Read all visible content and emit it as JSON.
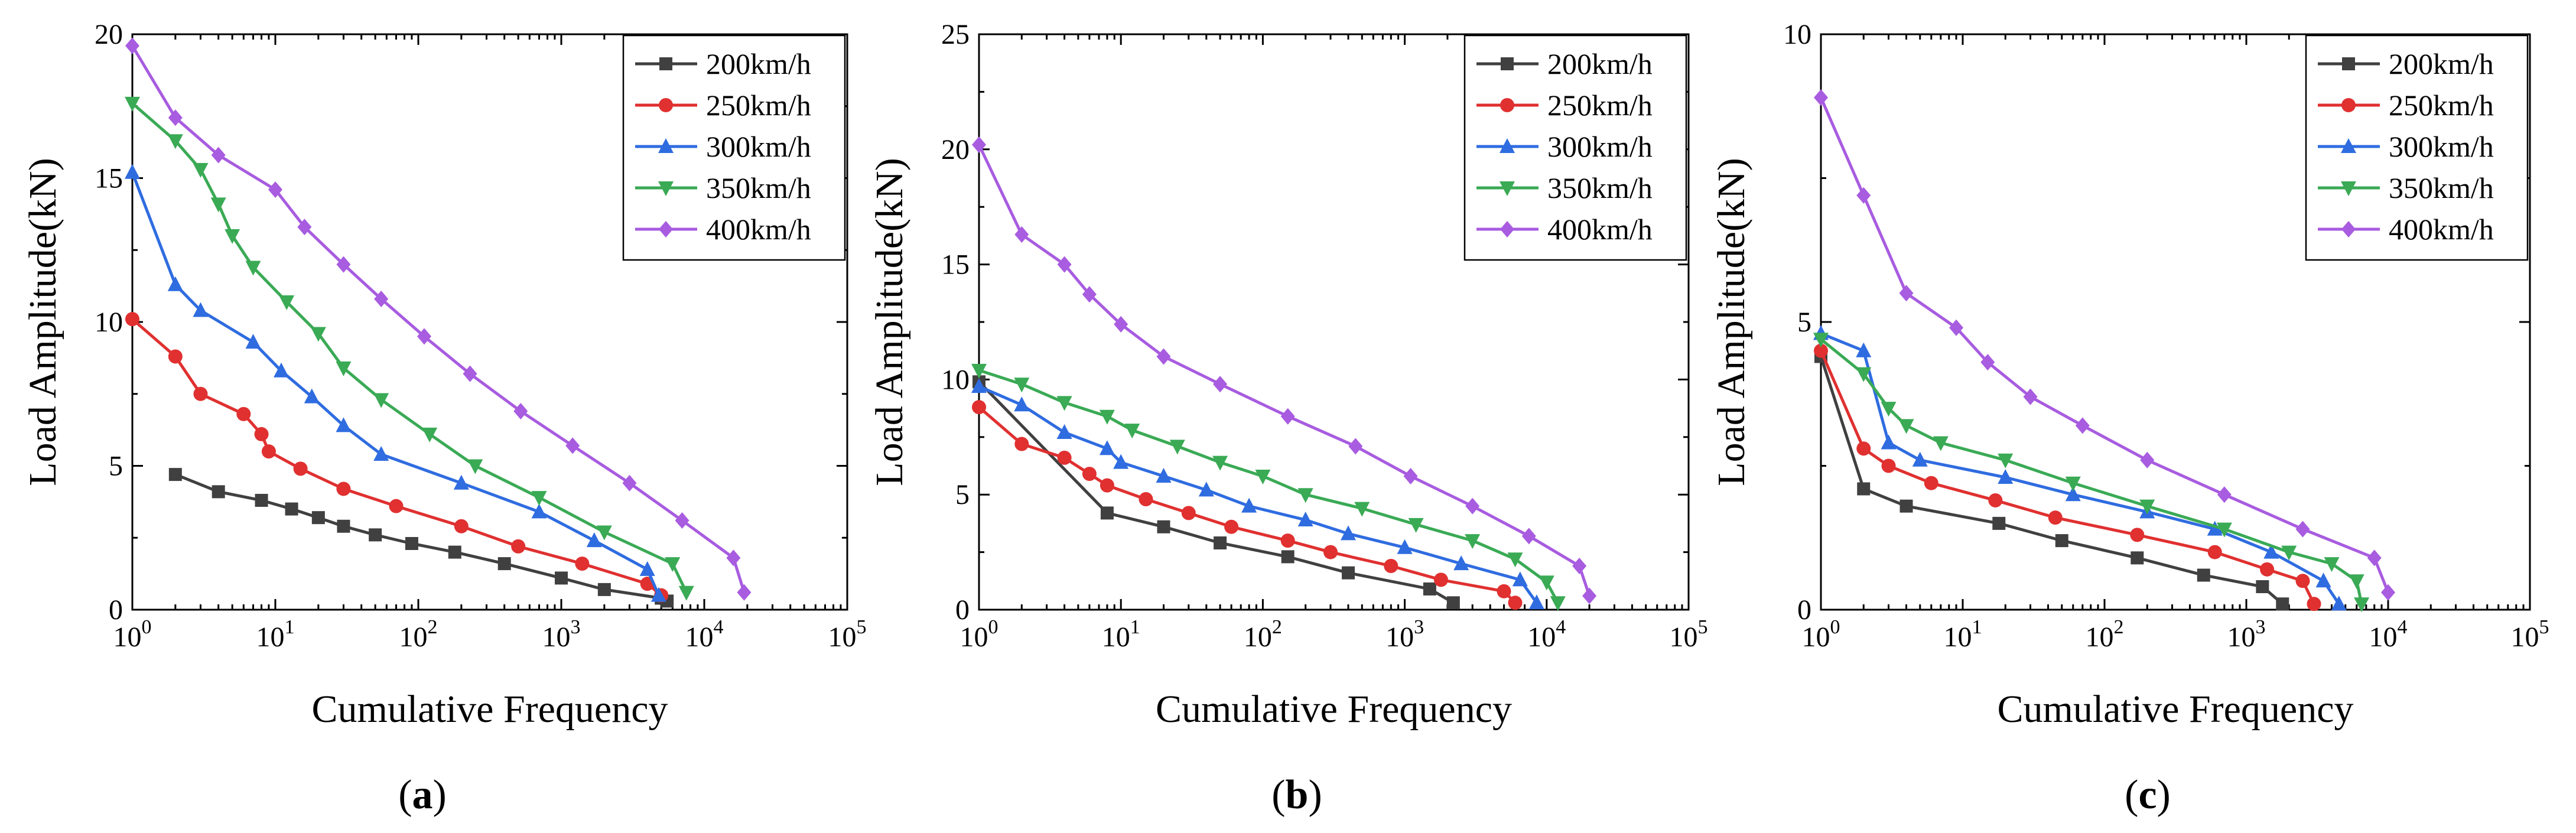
{
  "chart_data": [
    {
      "type": "line",
      "panel": "a",
      "xlabel": "Cumulative Frequency",
      "ylabel": "Load Amplitude(kN)",
      "xscale": "log",
      "xlim": [
        1,
        100000
      ],
      "ylim": [
        0,
        20
      ],
      "xticks": [
        1,
        10,
        100,
        1000,
        10000,
        100000
      ],
      "xtick_exponents": [
        "0",
        "1",
        "2",
        "3",
        "4",
        "5"
      ],
      "yticks": [
        0,
        5,
        10,
        15,
        20
      ],
      "legend_position": "top-right",
      "series": [
        {
          "name": "200km/h",
          "color": "#404040",
          "marker": "square",
          "x": [
            2,
            4,
            8,
            13,
            20,
            30,
            50,
            90,
            180,
            400,
            1000,
            2000,
            5000,
            5500
          ],
          "y": [
            4.7,
            4.1,
            3.8,
            3.5,
            3.2,
            2.9,
            2.6,
            2.3,
            2.0,
            1.6,
            1.1,
            0.7,
            0.4,
            0.3
          ]
        },
        {
          "name": "250km/h",
          "color": "#e03030",
          "marker": "circle",
          "x": [
            1,
            2,
            3,
            6,
            8,
            9,
            15,
            30,
            70,
            200,
            500,
            1400,
            4000,
            5000
          ],
          "y": [
            10.1,
            8.8,
            7.5,
            6.8,
            6.1,
            5.5,
            4.9,
            4.2,
            3.6,
            2.9,
            2.2,
            1.6,
            0.9,
            0.5
          ]
        },
        {
          "name": "300km/h",
          "color": "#2f6ce0",
          "marker": "triangle-up",
          "x": [
            1,
            2,
            3,
            7,
            11,
            18,
            30,
            55,
            200,
            700,
            1700,
            4000,
            4800
          ],
          "y": [
            15.2,
            11.3,
            10.4,
            9.3,
            8.3,
            7.4,
            6.4,
            5.4,
            4.4,
            3.4,
            2.4,
            1.4,
            0.5
          ]
        },
        {
          "name": "350km/h",
          "color": "#3aaa55",
          "marker": "triangle-down",
          "x": [
            1,
            2,
            3,
            4,
            5,
            7,
            12,
            20,
            30,
            55,
            120,
            250,
            700,
            2000,
            6000,
            7500
          ],
          "y": [
            17.6,
            16.3,
            15.3,
            14.1,
            13.0,
            11.9,
            10.7,
            9.6,
            8.4,
            7.3,
            6.1,
            5.0,
            3.9,
            2.7,
            1.6,
            0.6
          ]
        },
        {
          "name": "400km/h",
          "color": "#a85ce0",
          "marker": "diamond",
          "x": [
            1,
            2,
            4,
            10,
            16,
            30,
            55,
            110,
            230,
            520,
            1200,
            3000,
            7000,
            16000,
            19000
          ],
          "y": [
            19.6,
            17.1,
            15.8,
            14.6,
            13.3,
            12.0,
            10.8,
            9.5,
            8.2,
            6.9,
            5.7,
            4.4,
            3.1,
            1.8,
            0.6
          ]
        }
      ]
    },
    {
      "type": "line",
      "panel": "b",
      "xlabel": "Cumulative Frequency",
      "ylabel": "Load Amplitude(kN)",
      "xscale": "log",
      "xlim": [
        1,
        100000
      ],
      "ylim": [
        0,
        25
      ],
      "xticks": [
        1,
        10,
        100,
        1000,
        10000,
        100000
      ],
      "xtick_exponents": [
        "0",
        "1",
        "2",
        "3",
        "4",
        "5"
      ],
      "yticks": [
        0,
        5,
        10,
        15,
        20,
        25
      ],
      "legend_position": "top-right",
      "series": [
        {
          "name": "200km/h",
          "color": "#404040",
          "marker": "square",
          "x": [
            1,
            8,
            20,
            50,
            150,
            400,
            1500,
            2200
          ],
          "y": [
            9.9,
            4.2,
            3.6,
            2.9,
            2.3,
            1.6,
            0.9,
            0.3
          ]
        },
        {
          "name": "250km/h",
          "color": "#e03030",
          "marker": "circle",
          "x": [
            1,
            2,
            4,
            6,
            8,
            15,
            30,
            60,
            150,
            300,
            800,
            1800,
            5000,
            6000
          ],
          "y": [
            8.8,
            7.2,
            6.6,
            5.9,
            5.4,
            4.8,
            4.2,
            3.6,
            3.0,
            2.5,
            1.9,
            1.3,
            0.8,
            0.3
          ]
        },
        {
          "name": "300km/h",
          "color": "#2f6ce0",
          "marker": "triangle-up",
          "x": [
            1,
            2,
            4,
            8,
            10,
            20,
            40,
            80,
            200,
            400,
            1000,
            2500,
            6500,
            8500
          ],
          "y": [
            9.7,
            8.9,
            7.7,
            7.0,
            6.4,
            5.8,
            5.2,
            4.5,
            3.9,
            3.3,
            2.7,
            2.0,
            1.3,
            0.3
          ]
        },
        {
          "name": "350km/h",
          "color": "#3aaa55",
          "marker": "triangle-down",
          "x": [
            1,
            2,
            4,
            8,
            12,
            25,
            50,
            100,
            200,
            500,
            1200,
            3000,
            6000,
            10000,
            12000
          ],
          "y": [
            10.4,
            9.8,
            9.0,
            8.4,
            7.8,
            7.1,
            6.4,
            5.8,
            5.0,
            4.4,
            3.7,
            3.0,
            2.2,
            1.2,
            0.3
          ]
        },
        {
          "name": "400km/h",
          "color": "#a85ce0",
          "marker": "diamond",
          "x": [
            1,
            2,
            4,
            6,
            10,
            20,
            50,
            150,
            450,
            1100,
            3000,
            7500,
            17000,
            20000
          ],
          "y": [
            20.2,
            16.3,
            15.0,
            13.7,
            12.4,
            11.0,
            9.8,
            8.4,
            7.1,
            5.8,
            4.5,
            3.2,
            1.9,
            0.6
          ]
        }
      ]
    },
    {
      "type": "line",
      "panel": "c",
      "xlabel": "Cumulative Frequency",
      "ylabel": "Load Amplitude(kN)",
      "xscale": "log",
      "xlim": [
        1,
        100000
      ],
      "ylim": [
        0,
        10
      ],
      "xticks": [
        1,
        10,
        100,
        1000,
        10000,
        100000
      ],
      "xtick_exponents": [
        "0",
        "1",
        "2",
        "3",
        "4",
        "5"
      ],
      "yticks": [
        0,
        5,
        10
      ],
      "legend_position": "top-right",
      "series": [
        {
          "name": "200km/h",
          "color": "#404040",
          "marker": "square",
          "x": [
            1,
            2,
            4,
            18,
            50,
            170,
            500,
            1300,
            1800
          ],
          "y": [
            4.4,
            2.1,
            1.8,
            1.5,
            1.2,
            0.9,
            0.6,
            0.4,
            0.1
          ]
        },
        {
          "name": "250km/h",
          "color": "#e03030",
          "marker": "circle",
          "x": [
            1,
            2,
            3,
            6,
            17,
            45,
            170,
            600,
            1400,
            2500,
            3000
          ],
          "y": [
            4.5,
            2.8,
            2.5,
            2.2,
            1.9,
            1.6,
            1.3,
            1.0,
            0.7,
            0.5,
            0.1
          ]
        },
        {
          "name": "300km/h",
          "color": "#2f6ce0",
          "marker": "triangle-up",
          "x": [
            1,
            2,
            3,
            5,
            20,
            60,
            200,
            600,
            1500,
            3500,
            4500
          ],
          "y": [
            4.8,
            4.5,
            2.9,
            2.6,
            2.3,
            2.0,
            1.7,
            1.4,
            1.0,
            0.5,
            0.1
          ]
        },
        {
          "name": "350km/h",
          "color": "#3aaa55",
          "marker": "triangle-down",
          "x": [
            1,
            2,
            3,
            4,
            7,
            20,
            60,
            200,
            700,
            2000,
            4000,
            6000,
            6500
          ],
          "y": [
            4.7,
            4.1,
            3.5,
            3.2,
            2.9,
            2.6,
            2.2,
            1.8,
            1.4,
            1.0,
            0.8,
            0.5,
            0.1
          ]
        },
        {
          "name": "400km/h",
          "color": "#a85ce0",
          "marker": "diamond",
          "x": [
            1,
            2,
            4,
            9,
            15,
            30,
            70,
            200,
            700,
            2500,
            8000,
            10000
          ],
          "y": [
            8.9,
            7.2,
            5.5,
            4.9,
            4.3,
            3.7,
            3.2,
            2.6,
            2.0,
            1.4,
            0.9,
            0.3
          ]
        }
      ]
    }
  ],
  "panel_labels": [
    "a",
    "b",
    "c"
  ]
}
